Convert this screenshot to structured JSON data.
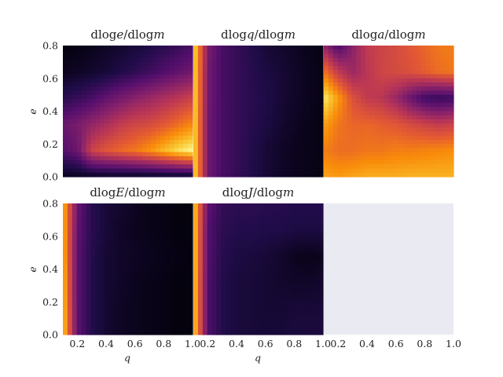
{
  "chart_data": {
    "type": "heatmap",
    "colormap": "inferno",
    "empty_panel_color": "#eaeaf2",
    "xlabel": "q",
    "ylabel": "e",
    "xticks": [
      "0.2",
      "0.4",
      "0.6",
      "0.8",
      "1.0"
    ],
    "yticks": [
      "0.0",
      "0.2",
      "0.4",
      "0.6",
      "0.8"
    ],
    "xlim": [
      0.1,
      1.0
    ],
    "ylim": [
      0.0,
      0.8
    ],
    "panels": [
      {
        "title_parts": [
          "dlog",
          "e",
          "/dlog",
          "m"
        ],
        "description": "dark top-left; bright orange/yellow band near e≈0.1 spanning q≈0.3–1.0; purple mid region",
        "grid_rows_e_top_to_bottom": [
          [
            0.02,
            0.03,
            0.04,
            0.06,
            0.08,
            0.1,
            0.12,
            0.15,
            0.18,
            0.22
          ],
          [
            0.05,
            0.06,
            0.08,
            0.1,
            0.13,
            0.16,
            0.2,
            0.24,
            0.28,
            0.32
          ],
          [
            0.15,
            0.18,
            0.22,
            0.28,
            0.33,
            0.38,
            0.42,
            0.46,
            0.5,
            0.55
          ],
          [
            0.3,
            0.34,
            0.4,
            0.46,
            0.52,
            0.56,
            0.58,
            0.62,
            0.68,
            0.74
          ],
          [
            0.25,
            0.3,
            0.55,
            0.62,
            0.66,
            0.7,
            0.76,
            0.84,
            0.92,
            0.98
          ],
          [
            0.05,
            0.05,
            0.05,
            0.05,
            0.05,
            0.05,
            0.05,
            0.05,
            0.05,
            0.05
          ]
        ]
      },
      {
        "title_parts": [
          "dlog",
          "q",
          "/dlog",
          "m"
        ],
        "description": "bright yellow-orange strip at low q; mostly dark purple elsewhere",
        "grid_rows_e_top_to_bottom": [
          [
            0.95,
            0.35,
            0.22,
            0.18,
            0.14,
            0.1,
            0.08,
            0.06,
            0.04,
            0.03
          ],
          [
            0.95,
            0.33,
            0.22,
            0.18,
            0.15,
            0.12,
            0.1,
            0.07,
            0.05,
            0.03
          ],
          [
            0.95,
            0.33,
            0.22,
            0.18,
            0.15,
            0.13,
            0.1,
            0.07,
            0.05,
            0.03
          ],
          [
            0.95,
            0.32,
            0.22,
            0.18,
            0.15,
            0.12,
            0.09,
            0.06,
            0.04,
            0.03
          ],
          [
            0.95,
            0.32,
            0.22,
            0.18,
            0.14,
            0.1,
            0.07,
            0.05,
            0.04,
            0.03
          ],
          [
            0.95,
            0.32,
            0.22,
            0.18,
            0.14,
            0.1,
            0.07,
            0.05,
            0.04,
            0.03
          ]
        ]
      },
      {
        "title_parts": [
          "dlog",
          "a",
          "/dlog",
          "m"
        ],
        "description": "bright yellow left edge near e≈0.4; orange/red upper right; dark band e≈0.35–0.5 at high q; orange bottom",
        "grid_rows_e_top_to_bottom": [
          [
            0.4,
            0.22,
            0.38,
            0.52,
            0.55,
            0.58,
            0.62,
            0.66,
            0.7,
            0.72
          ],
          [
            0.7,
            0.52,
            0.42,
            0.5,
            0.56,
            0.58,
            0.6,
            0.64,
            0.68,
            0.7
          ],
          [
            0.96,
            0.78,
            0.6,
            0.52,
            0.5,
            0.42,
            0.3,
            0.2,
            0.18,
            0.2
          ],
          [
            0.8,
            0.7,
            0.66,
            0.66,
            0.64,
            0.62,
            0.58,
            0.55,
            0.52,
            0.55
          ],
          [
            0.72,
            0.68,
            0.68,
            0.7,
            0.7,
            0.72,
            0.72,
            0.73,
            0.74,
            0.75
          ],
          [
            0.8,
            0.78,
            0.8,
            0.82,
            0.82,
            0.82,
            0.83,
            0.83,
            0.83,
            0.83
          ]
        ]
      },
      {
        "title_parts": [
          "dlog",
          "E",
          "/dlog",
          "m"
        ],
        "description": "bright yellow strip at lowest q fading quickly to near-black across rest",
        "grid_rows_e_top_to_bottom": [
          [
            0.85,
            0.3,
            0.15,
            0.1,
            0.08,
            0.06,
            0.04,
            0.03,
            0.02,
            0.02
          ],
          [
            0.85,
            0.28,
            0.15,
            0.1,
            0.07,
            0.05,
            0.04,
            0.03,
            0.02,
            0.02
          ],
          [
            0.85,
            0.27,
            0.14,
            0.09,
            0.07,
            0.06,
            0.05,
            0.04,
            0.03,
            0.02
          ],
          [
            0.87,
            0.27,
            0.14,
            0.09,
            0.07,
            0.05,
            0.04,
            0.03,
            0.02,
            0.02
          ],
          [
            0.88,
            0.27,
            0.14,
            0.09,
            0.06,
            0.05,
            0.04,
            0.03,
            0.02,
            0.02
          ],
          [
            0.9,
            0.27,
            0.14,
            0.09,
            0.06,
            0.05,
            0.04,
            0.03,
            0.02,
            0.02
          ]
        ]
      },
      {
        "title_parts": [
          "dlog",
          "J",
          "/dlog",
          "m"
        ],
        "description": "bright yellow strip at lowest q; dark purple elsewhere with darker region e≈0.35–0.45 high q",
        "grid_rows_e_top_to_bottom": [
          [
            0.92,
            0.28,
            0.18,
            0.16,
            0.16,
            0.15,
            0.15,
            0.14,
            0.14,
            0.14
          ],
          [
            0.92,
            0.25,
            0.16,
            0.14,
            0.14,
            0.13,
            0.13,
            0.12,
            0.12,
            0.12
          ],
          [
            0.92,
            0.25,
            0.15,
            0.12,
            0.11,
            0.1,
            0.08,
            0.05,
            0.04,
            0.05
          ],
          [
            0.92,
            0.24,
            0.14,
            0.11,
            0.1,
            0.09,
            0.08,
            0.07,
            0.07,
            0.08
          ],
          [
            0.92,
            0.24,
            0.14,
            0.11,
            0.1,
            0.09,
            0.09,
            0.1,
            0.1,
            0.1
          ],
          [
            0.92,
            0.24,
            0.14,
            0.11,
            0.1,
            0.1,
            0.1,
            0.11,
            0.11,
            0.11
          ]
        ]
      },
      {
        "title_parts": [],
        "description": "empty panel",
        "grid_rows_e_top_to_bottom": []
      }
    ]
  }
}
